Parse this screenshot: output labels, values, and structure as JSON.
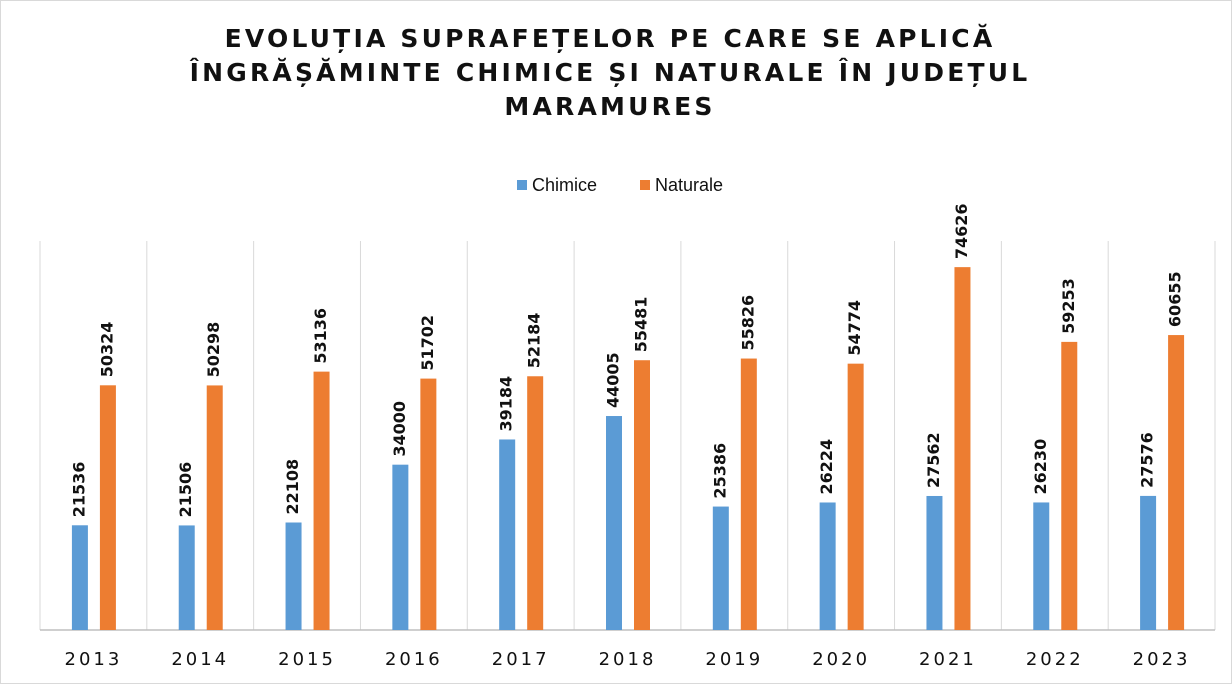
{
  "chart_data": {
    "type": "bar",
    "title": "EVOLUȚIA SUPRAFEȚELOR PE CARE SE APLICĂ ÎNGRĂȘĂMINTE CHIMICE ȘI NATURALE ÎN JUDEȚUL MARAMURES",
    "categories": [
      "2013",
      "2014",
      "2015",
      "2016",
      "2017",
      "2018",
      "2019",
      "2020",
      "2021",
      "2022",
      "2023"
    ],
    "series": [
      {
        "name": "Chimice",
        "color": "#5b9bd5",
        "values": [
          21536,
          21506,
          22108,
          34000,
          39184,
          44005,
          25386,
          26224,
          27562,
          26230,
          27576
        ]
      },
      {
        "name": "Naturale",
        "color": "#ed7d31",
        "values": [
          50324,
          50298,
          53136,
          51702,
          52184,
          55481,
          55826,
          54774,
          74626,
          59253,
          60655
        ]
      }
    ],
    "ylim": [
      0,
      80000
    ],
    "grid": true,
    "legend": "top"
  }
}
